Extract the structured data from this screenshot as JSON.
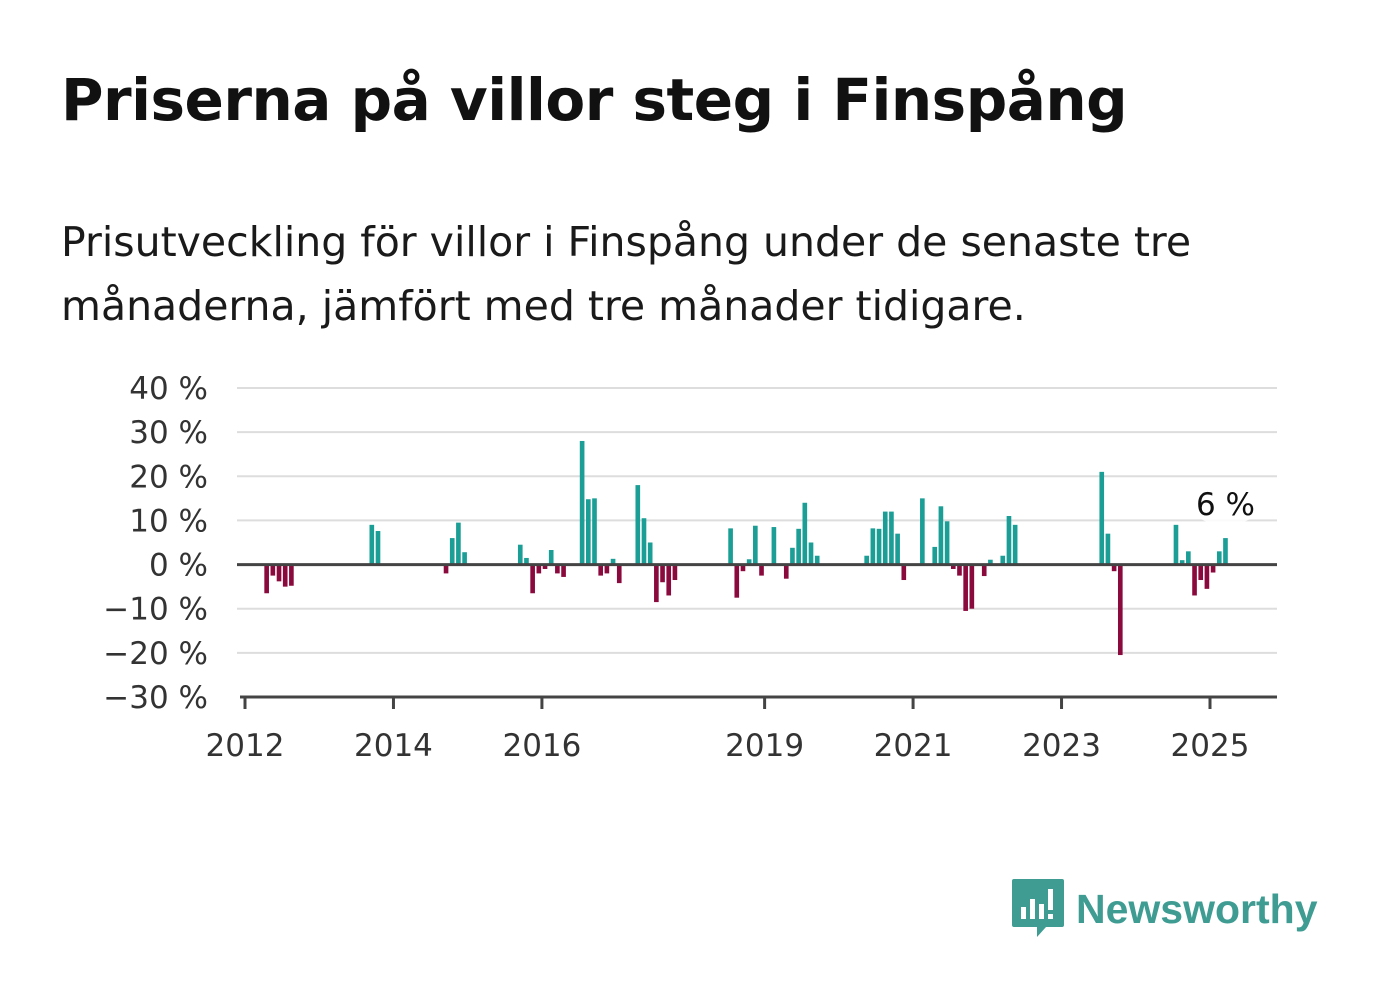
{
  "title": "Priserna på villor steg i Finspång",
  "subtitle": "Prisutveckling för villor i Finspång under de senaste tre månaderna, jämfört med tre månader tidigare.",
  "brand": {
    "name": "Newsworthy",
    "color": "#3f9c93",
    "icon": "bar-chart-speech-bubble-icon"
  },
  "chart_data": {
    "type": "bar",
    "title": "Priserna på villor steg i Finspång",
    "xlabel": "",
    "ylabel": "",
    "ylim": [
      -30,
      40
    ],
    "y_ticks": [
      -30,
      -20,
      -10,
      0,
      10,
      20,
      30,
      40
    ],
    "y_tick_labels": [
      "−30 %",
      "−20 %",
      "−10 %",
      "0 %",
      "10 %",
      "20 %",
      "30 %",
      "40 %"
    ],
    "x_ticks": [
      2012,
      2014,
      2016,
      2019,
      2021,
      2023,
      2025
    ],
    "x_tick_labels": [
      "2012",
      "2014",
      "2016",
      "2019",
      "2021",
      "2023",
      "2025"
    ],
    "xlim": [
      2011.95,
      2025.9
    ],
    "bar_width_months": 0.75,
    "grid": true,
    "legend": "none",
    "colors": {
      "positive": "#1a9e96",
      "negative": "#8b0a3e",
      "grid": "#dddddd",
      "axis": "#444444",
      "zero": "#444444"
    },
    "annotation": {
      "x": "2025-03",
      "label": "6 %"
    },
    "x": [
      "2012-04",
      "2012-05",
      "2012-06",
      "2012-07",
      "2012-08",
      "2013-09",
      "2013-10",
      "2014-09",
      "2014-10",
      "2014-11",
      "2014-12",
      "2015-09",
      "2015-10",
      "2015-11",
      "2015-12",
      "2016-01",
      "2016-02",
      "2016-03",
      "2016-04",
      "2016-07",
      "2016-08",
      "2016-09",
      "2016-10",
      "2016-11",
      "2016-12",
      "2017-01",
      "2017-04",
      "2017-05",
      "2017-06",
      "2017-07",
      "2017-08",
      "2017-09",
      "2017-10",
      "2018-07",
      "2018-08",
      "2018-09",
      "2018-10",
      "2018-11",
      "2018-12",
      "2019-02",
      "2019-04",
      "2019-05",
      "2019-06",
      "2019-07",
      "2019-08",
      "2019-09",
      "2020-05",
      "2020-06",
      "2020-07",
      "2020-08",
      "2020-09",
      "2020-10",
      "2020-11",
      "2021-02",
      "2021-04",
      "2021-05",
      "2021-06",
      "2021-07",
      "2021-08",
      "2021-09",
      "2021-10",
      "2021-12",
      "2022-01",
      "2022-03",
      "2022-04",
      "2022-05",
      "2023-07",
      "2023-08",
      "2023-09",
      "2023-10",
      "2024-07",
      "2024-08",
      "2024-09",
      "2024-10",
      "2024-11",
      "2024-12",
      "2025-01",
      "2025-02",
      "2025-03"
    ],
    "values": [
      -6.5,
      -2.5,
      -3.8,
      -5,
      -4.8,
      9,
      7.6,
      -2,
      6,
      9.5,
      2.8,
      4.5,
      1.5,
      -6.5,
      -2,
      -1,
      3.3,
      -2,
      -2.8,
      28,
      14.8,
      15,
      -2.5,
      -2,
      1.3,
      -4.2,
      18,
      10.5,
      5,
      -8.5,
      -4,
      -7,
      -3.5,
      8.2,
      -7.5,
      -1.5,
      1.2,
      8.8,
      -2.5,
      8.5,
      -3.2,
      3.8,
      8.1,
      14,
      5,
      2,
      2,
      8.2,
      8.1,
      12,
      12,
      7,
      -3.5,
      15,
      4,
      13.2,
      9.8,
      -1,
      -2.5,
      -10.5,
      -10,
      -2.6,
      1.1,
      2,
      11,
      9,
      21,
      7,
      -1.5,
      -20.5,
      9,
      1,
      3,
      -7,
      -3.5,
      -5.5,
      -1.8,
      3,
      6
    ]
  }
}
